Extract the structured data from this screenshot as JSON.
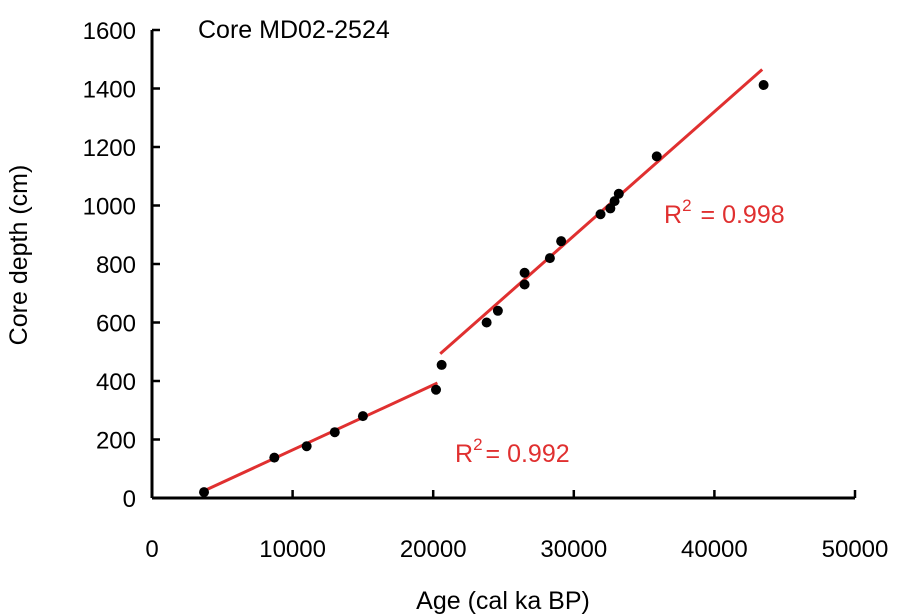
{
  "chart_data": {
    "type": "scatter",
    "title": "",
    "xlabel": "Age (cal ka BP)",
    "ylabel": "Core depth (cm)",
    "xlim": [
      0,
      50000
    ],
    "ylim": [
      0,
      1600
    ],
    "xticks": [
      0,
      10000,
      20000,
      30000,
      40000,
      50000
    ],
    "yticks": [
      0,
      200,
      400,
      600,
      800,
      1000,
      1200,
      1400,
      1600
    ],
    "xtick_labels": [
      "0",
      "10000",
      "20000",
      "30000",
      "40000",
      "50000"
    ],
    "ytick_labels": [
      "0",
      "200",
      "400",
      "600",
      "800",
      "1000",
      "1200",
      "1400",
      "1600"
    ],
    "grid": false,
    "legend": "none",
    "colors": {
      "points": "#000000",
      "fit": "#e03030",
      "axis": "#000000"
    },
    "annotations": [
      {
        "text": "Core MD02-2524",
        "color": "#000000"
      }
    ],
    "series": [
      {
        "points": [
          [
            3700,
            20
          ],
          [
            8700,
            138
          ],
          [
            11000,
            177
          ],
          [
            13000,
            225
          ],
          [
            15000,
            280
          ],
          [
            20200,
            370
          ],
          [
            20600,
            455
          ],
          [
            23800,
            600
          ],
          [
            24600,
            640
          ],
          [
            26500,
            730
          ],
          [
            26500,
            770
          ],
          [
            28300,
            820
          ],
          [
            29100,
            878
          ],
          [
            31900,
            970
          ],
          [
            32600,
            990
          ],
          [
            32900,
            1015
          ],
          [
            33200,
            1040
          ],
          [
            35900,
            1168
          ],
          [
            43500,
            1412
          ]
        ]
      }
    ],
    "fits": [
      {
        "x": [
          3500,
          20300
        ],
        "y": [
          20,
          393
        ],
        "r2_base": "R",
        "r2_exp": "2",
        "r2_value": "= 0.992"
      },
      {
        "x": [
          20500,
          43400
        ],
        "y": [
          493,
          1465
        ],
        "r2_base": "R",
        "r2_exp": "2",
        "r2_value": "= 0.998"
      }
    ]
  }
}
